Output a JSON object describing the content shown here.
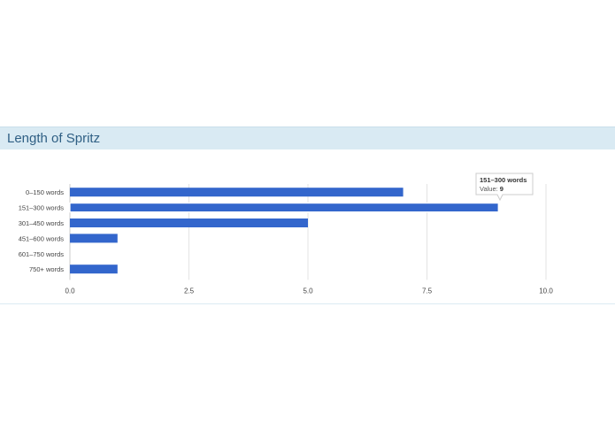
{
  "panel": {
    "title": "Length of Spritz"
  },
  "tooltip": {
    "category": "151–300 words",
    "value_label": "Value:",
    "value": "9"
  },
  "chart_data": {
    "type": "bar",
    "orientation": "horizontal",
    "title": "Length of Spritz",
    "categories": [
      "0–150 words",
      "151–300 words",
      "301–450 words",
      "451–600 words",
      "601–750 words",
      "750+ words"
    ],
    "values": [
      7,
      9,
      5,
      1,
      0,
      1
    ],
    "xlim": [
      0,
      10
    ],
    "xticks": [
      "0.0",
      "2.5",
      "5.0",
      "7.5",
      "10.0"
    ],
    "xtick_values": [
      0,
      2.5,
      5,
      7.5,
      10
    ],
    "grid": true,
    "colors": {
      "bar": "#3366cc",
      "grid": "#e3e3e3",
      "axis_text": "#444444",
      "title": "#2f5f84",
      "header_bg": "#d9eaf3"
    }
  }
}
